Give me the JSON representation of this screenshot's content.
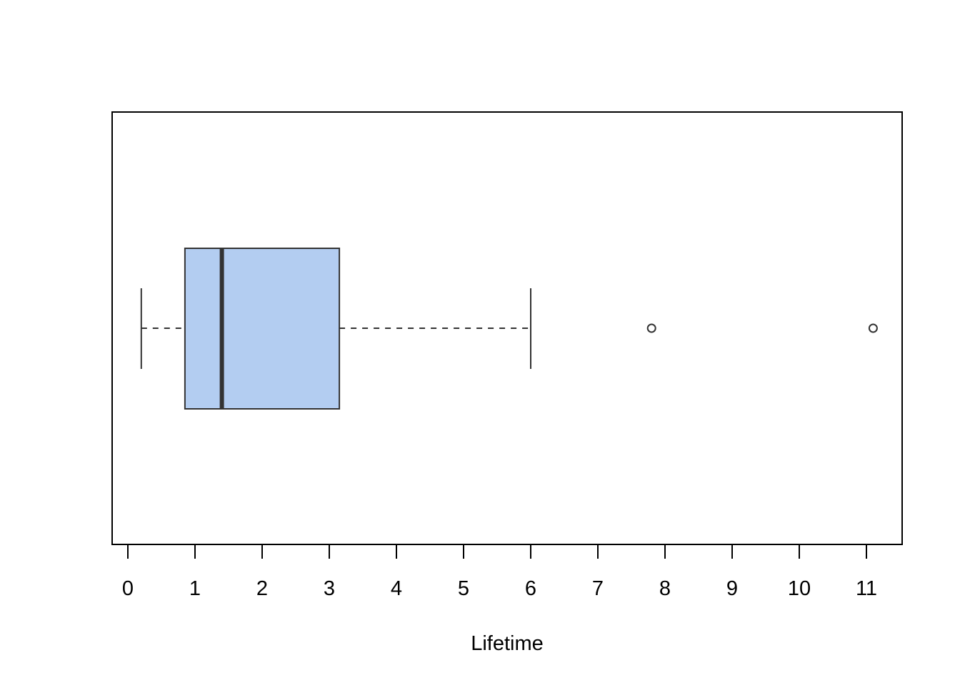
{
  "chart_data": {
    "type": "boxplot",
    "orientation": "horizontal",
    "title": "",
    "xlabel": "Lifetime",
    "ylabel": "",
    "xlim": [
      -0.23,
      11.53
    ],
    "x_ticks": [
      0,
      1,
      2,
      3,
      4,
      5,
      6,
      7,
      8,
      9,
      10,
      11
    ],
    "x_tick_labels": [
      "0",
      "1",
      "2",
      "3",
      "4",
      "5",
      "6",
      "7",
      "8",
      "9",
      "10",
      "11"
    ],
    "grid": false,
    "legend": null,
    "series": [
      {
        "name": "Lifetime",
        "whisker_low": 0.2,
        "q1": 0.85,
        "median": 1.4,
        "q3": 3.15,
        "whisker_high": 6.0,
        "outliers": [
          7.8,
          11.1
        ]
      }
    ],
    "colors": {
      "box_fill": "#b3cdf1",
      "box_border": "#333333",
      "median_line": "#333333",
      "whisker": "#333333",
      "frame": "#000000"
    }
  }
}
